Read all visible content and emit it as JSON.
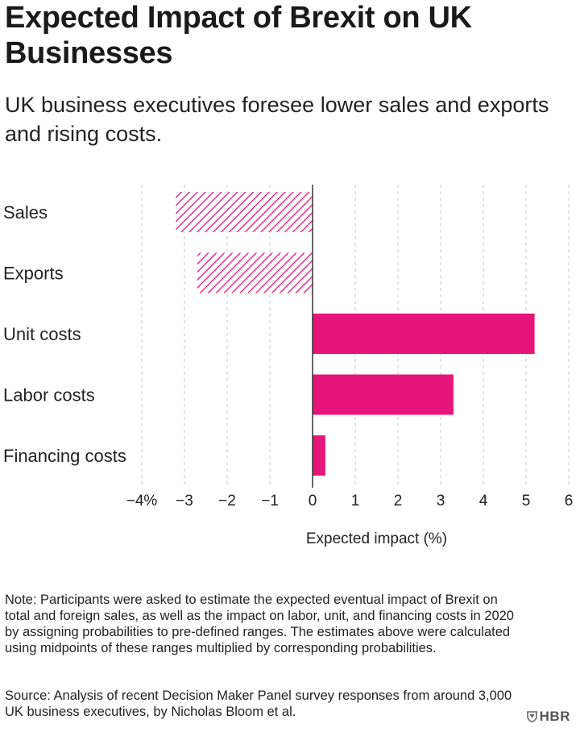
{
  "title": "Expected Impact of Brexit on UK Businesses",
  "subtitle": "UK business executives foresee lower sales and exports and rising costs.",
  "note": "Note: Participants were asked to estimate the expected eventual impact of Brexit on total and foreign sales, as well as the impact on labor, unit, and financing costs in 2020 by assigning probabilities to pre-defined ranges. The estimates above were calculated using midpoints of these ranges multiplied by corresponding probabilities.",
  "source": "Source: Analysis of recent Decision Maker Panel survey responses from around 3,000 UK business executives, by Nicholas Bloom et al.",
  "logo": "HBR",
  "colors": {
    "accent": "#e5157a",
    "grid": "#c8c8c8",
    "axis": "#333333"
  },
  "chart_data": {
    "type": "bar",
    "orientation": "horizontal",
    "categories": [
      "Sales",
      "Exports",
      "Unit costs",
      "Labor costs",
      "Financing costs"
    ],
    "values": [
      -3.2,
      -2.7,
      5.2,
      3.3,
      0.3
    ],
    "styles": [
      "hatched",
      "hatched",
      "solid",
      "solid",
      "solid"
    ],
    "xlabel": "Expected impact (%)",
    "xlim": [
      -4,
      6
    ],
    "xticks": [
      -4,
      -3,
      -2,
      -1,
      0,
      1,
      2,
      3,
      4,
      5,
      6
    ],
    "xtick_labels": [
      "−4%",
      "−3",
      "−2",
      "−1",
      "0",
      "1",
      "2",
      "3",
      "4",
      "5",
      "6"
    ],
    "grid": "vertical-dashed",
    "legend": "none"
  }
}
